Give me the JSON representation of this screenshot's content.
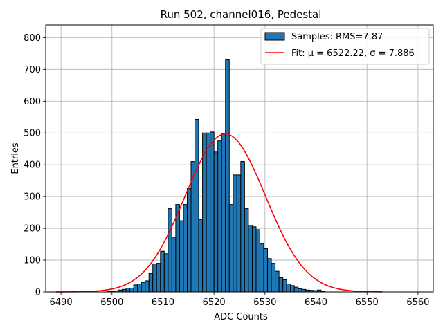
{
  "chart_data": {
    "type": "bar",
    "title": "Run 502, channel016, Pedestal",
    "xlabel": "ADC Counts",
    "ylabel": "Entries",
    "xlim": [
      6487,
      6563
    ],
    "ylim": [
      0,
      840
    ],
    "grid": true,
    "legend_position": "top-right",
    "xticks": [
      "6490",
      "6500",
      "6510",
      "6520",
      "6530",
      "6540",
      "6550",
      "6560"
    ],
    "yticks": [
      "0",
      "100",
      "200",
      "300",
      "400",
      "500",
      "600",
      "700",
      "800"
    ],
    "bin_width": 0.75,
    "bin_start": 6499.0,
    "histogram_color": "#1f77b4",
    "fit_color": "#ff0000",
    "series": [
      {
        "name": "Samples: RMS=7.87",
        "type": "histogram",
        "values": [
          2,
          2,
          3,
          6,
          8,
          12,
          12,
          22,
          25,
          30,
          35,
          58,
          88,
          90,
          128,
          120,
          262,
          172,
          275,
          224,
          275,
          325,
          410,
          543,
          228,
          500,
          500,
          503,
          440,
          475,
          497,
          730,
          275,
          368,
          368,
          410,
          262,
          210,
          205,
          196,
          152,
          136,
          105,
          90,
          65,
          45,
          38,
          25,
          20,
          15,
          10,
          8,
          6,
          5,
          4,
          6,
          2
        ]
      },
      {
        "name": "Fit: μ = 6522.22, σ = 7.886",
        "type": "line",
        "mu": 6522.22,
        "sigma": 7.886,
        "amplitude": 497,
        "x_range": [
          6489,
          6553
        ]
      }
    ]
  }
}
